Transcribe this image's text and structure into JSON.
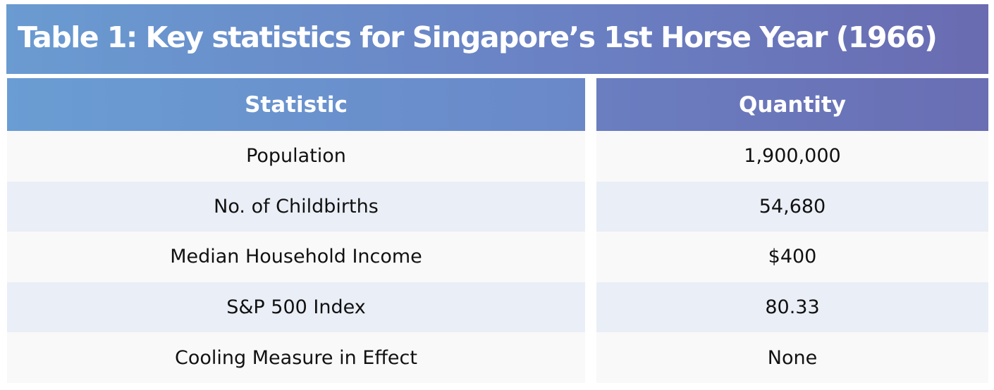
{
  "title": "Table 1: Key statistics for Singapore’s 1st Horse Year (1966)",
  "table": {
    "headers": [
      "Statistic",
      "Quantity"
    ],
    "rows": [
      {
        "statistic": "Population",
        "quantity": "1,900,000"
      },
      {
        "statistic": "No. of Childbirths",
        "quantity": "54,680"
      },
      {
        "statistic": "Median Household Income",
        "quantity": "$400"
      },
      {
        "statistic": "S&P 500 Index",
        "quantity": "80.33"
      },
      {
        "statistic": "Cooling Measure in Effect",
        "quantity": "None"
      }
    ]
  },
  "colors": {
    "header_start": "#6a9bd1",
    "header_end": "#6a6bb1",
    "row_light": "#f9f9f9",
    "row_tint": "#eaeef6",
    "header_text": "#ffffff",
    "body_text": "#111111"
  }
}
